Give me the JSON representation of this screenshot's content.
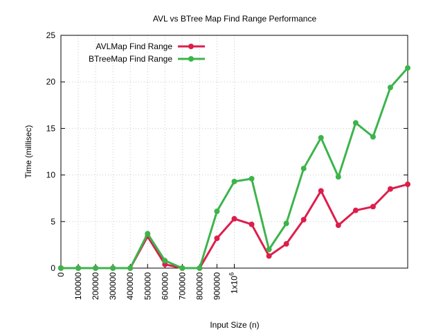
{
  "chart_data": {
    "type": "line",
    "title": "AVL vs BTree Map Find Range Performance",
    "xlabel": "Input Size (n)",
    "ylabel": "Time (millisec)",
    "xlim": [
      0,
      2000000
    ],
    "ylim": [
      0,
      25
    ],
    "x_ticks": [
      0,
      100000,
      200000,
      300000,
      400000,
      500000,
      600000,
      700000,
      800000,
      900000,
      1000000
    ],
    "x_tick_labels": [
      "0",
      "100000",
      "200000",
      "300000",
      "400000",
      "500000",
      "600000",
      "700000",
      "800000",
      "900000",
      "1x10^6"
    ],
    "y_ticks": [
      0,
      5,
      10,
      15,
      20,
      25
    ],
    "y_tick_labels": [
      "0",
      "5",
      "10",
      "15",
      "20",
      "25"
    ],
    "grid": true,
    "legend_position": "top-left",
    "x": [
      0,
      100000,
      200000,
      300000,
      400000,
      500000,
      600000,
      700000,
      800000,
      900000,
      1000000,
      1100000,
      1200000,
      1300000,
      1400000,
      1500000,
      1600000,
      1700000,
      1800000,
      1900000,
      2000000
    ],
    "series": [
      {
        "name": "AVLMap Find Range",
        "color": "#dc1e4b",
        "values": [
          0,
          0,
          0,
          0,
          0,
          3.4,
          0.4,
          0,
          0,
          3.2,
          5.3,
          4.7,
          1.3,
          2.6,
          5.2,
          8.3,
          4.6,
          6.2,
          6.6,
          8.5,
          9.0
        ]
      },
      {
        "name": "BTreeMap Find Range",
        "color": "#3cb44b",
        "values": [
          0,
          0,
          0,
          0,
          0,
          3.7,
          0.8,
          0,
          0,
          6.1,
          9.3,
          9.6,
          2.0,
          4.8,
          10.7,
          14.0,
          9.8,
          15.6,
          14.1,
          19.4,
          21.5
        ]
      }
    ]
  }
}
